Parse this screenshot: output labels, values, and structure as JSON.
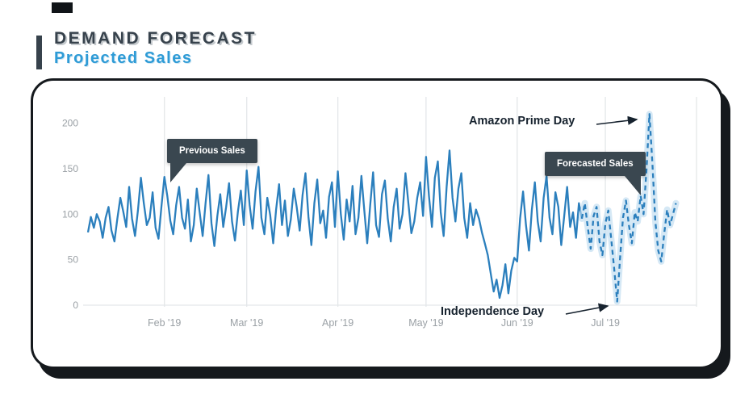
{
  "page": {
    "title": "DEMAND FORECAST",
    "subtitle": "Projected Sales"
  },
  "tooltips": {
    "previous": "Previous Sales",
    "forecast": "Forecasted Sales"
  },
  "annotations": {
    "prime_day": "Amazon Prime Day",
    "independence_day": "Independence Day"
  },
  "colors": {
    "line": "#2b7fbd",
    "forecast_halo": "#bfdcf0",
    "tooltip_bg": "#3a4750",
    "grid": "#e4e7e9",
    "tick_text": "#9aa0a5",
    "annotation_text": "#16222e"
  },
  "chart_data": {
    "type": "line",
    "title": "Projected Sales",
    "xlabel": "",
    "ylabel": "",
    "ylim": [
      0,
      220
    ],
    "ylabel_ticks": [
      0,
      50,
      100,
      150,
      200
    ],
    "x_unit": "day offset from Jan 6 2019",
    "x_max_day": 207,
    "extra_grid_days": [
      207
    ],
    "ticks": [
      {
        "label": "Feb '19",
        "day": 26
      },
      {
        "label": "Mar '19",
        "day": 54
      },
      {
        "label": "Apr '19",
        "day": 85
      },
      {
        "label": "May '19",
        "day": 115
      },
      {
        "label": "Jun '19",
        "day": 146
      },
      {
        "label": "Jul '19",
        "day": 176
      }
    ],
    "series": [
      {
        "name": "Previous Sales",
        "style": "solid",
        "start_day": 0,
        "values": [
          80,
          97,
          85,
          100,
          92,
          74,
          96,
          108,
          82,
          70,
          95,
          118,
          103,
          86,
          130,
          95,
          76,
          104,
          140,
          112,
          88,
          96,
          124,
          85,
          73,
          109,
          141,
          120,
          93,
          78,
          110,
          130,
          96,
          84,
          116,
          70,
          88,
          128,
          102,
          76,
          112,
          143,
          90,
          65,
          98,
          122,
          86,
          108,
          134,
          92,
          71,
          103,
          126,
          88,
          148,
          110,
          84,
          125,
          152,
          96,
          78,
          118,
          99,
          68,
          105,
          133,
          88,
          115,
          76,
          94,
          128,
          108,
          82,
          121,
          145,
          97,
          66,
          112,
          138,
          90,
          104,
          74,
          119,
          135,
          86,
          147,
          100,
          72,
          116,
          92,
          131,
          78,
          96,
          142,
          104,
          68,
          110,
          146,
          88,
          75,
          122,
          137,
          95,
          70,
          108,
          128,
          84,
          100,
          145,
          112,
          79,
          92,
          118,
          135,
          98,
          163,
          120,
          86,
          140,
          158,
          102,
          76,
          130,
          170,
          118,
          92,
          128,
          145,
          96,
          74,
          112,
          88,
          105,
          95,
          80,
          68,
          55,
          35,
          15,
          28,
          8,
          22,
          45,
          13,
          38,
          52,
          48,
          95,
          125,
          88,
          60,
          105,
          135,
          92,
          70,
          118,
          142,
          96,
          78,
          124,
          108,
          66,
          98,
          130,
          86,
          102,
          74,
          112,
          95
        ]
      },
      {
        "name": "Forecasted Sales",
        "style": "dashed",
        "start_day": 168,
        "values": [
          95,
          112,
          86,
          62,
          98,
          108,
          70,
          55,
          90,
          104,
          72,
          40,
          4,
          52,
          96,
          115,
          88,
          68,
          102,
          92,
          120,
          100,
          150,
          210,
          155,
          92,
          60,
          48,
          78,
          105,
          88,
          100,
          112
        ]
      }
    ],
    "events": [
      {
        "label": "Independence Day",
        "day": 180,
        "value": 4
      },
      {
        "label": "Amazon Prime Day",
        "day": 191,
        "value": 210
      }
    ]
  }
}
